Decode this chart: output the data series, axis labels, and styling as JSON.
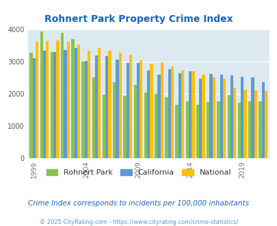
{
  "title": "Rohnert Park Property Crime Index",
  "title_color": "#1565C0",
  "years": [
    1999,
    2000,
    2001,
    2002,
    2003,
    2004,
    2005,
    2006,
    2007,
    2008,
    2009,
    2010,
    2011,
    2012,
    2013,
    2014,
    2015,
    2016,
    2017,
    2018,
    2019,
    2020,
    2021
  ],
  "rohnert_park": [
    3280,
    3940,
    3300,
    3890,
    3700,
    3000,
    2510,
    1980,
    2360,
    1940,
    2280,
    2050,
    2000,
    1900,
    1650,
    1770,
    1650,
    1740,
    1760,
    1950,
    1720,
    1760,
    1760
  ],
  "california": [
    3110,
    3340,
    3300,
    3360,
    3420,
    3030,
    3180,
    3160,
    3060,
    2960,
    2960,
    2730,
    2600,
    2760,
    2640,
    2700,
    2470,
    2620,
    2600,
    2580,
    2520,
    2510,
    2370
  ],
  "national": [
    3610,
    3640,
    3660,
    3610,
    3540,
    3340,
    3430,
    3330,
    3270,
    3210,
    3040,
    2940,
    2970,
    2860,
    2730,
    2700,
    2600,
    2510,
    2460,
    2200,
    2130,
    2100,
    2090
  ],
  "rohnert_color": "#8BC34A",
  "california_color": "#5B9BD5",
  "national_color": "#FFC107",
  "background_color": "#DCE9F0",
  "ylim": [
    0,
    4000
  ],
  "yticks": [
    0,
    1000,
    2000,
    3000,
    4000
  ],
  "xtick_years": [
    1999,
    2004,
    2009,
    2014,
    2019
  ],
  "subtitle": "Crime Index corresponds to incidents per 100,000 inhabitants",
  "footer": "© 2025 CityRating.com - https://www.cityrating.com/crime-statistics/",
  "subtitle_color": "#1565C0",
  "footer_color": "#5B9BD5"
}
